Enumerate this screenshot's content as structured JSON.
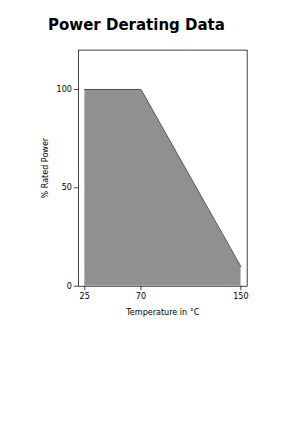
{
  "chart_data": {
    "type": "area",
    "title": "Power Derating Data",
    "x": [
      25,
      70,
      150
    ],
    "values": [
      100,
      100,
      10
    ],
    "color": "#909090",
    "xlabel": "Temperature in °C",
    "ylabel": "% Rated Power",
    "xlim": [
      20,
      155
    ],
    "ylim": [
      0,
      120
    ],
    "xticks": [
      25,
      70,
      150
    ],
    "yticks": [
      0,
      50,
      100
    ],
    "grid": false
  }
}
